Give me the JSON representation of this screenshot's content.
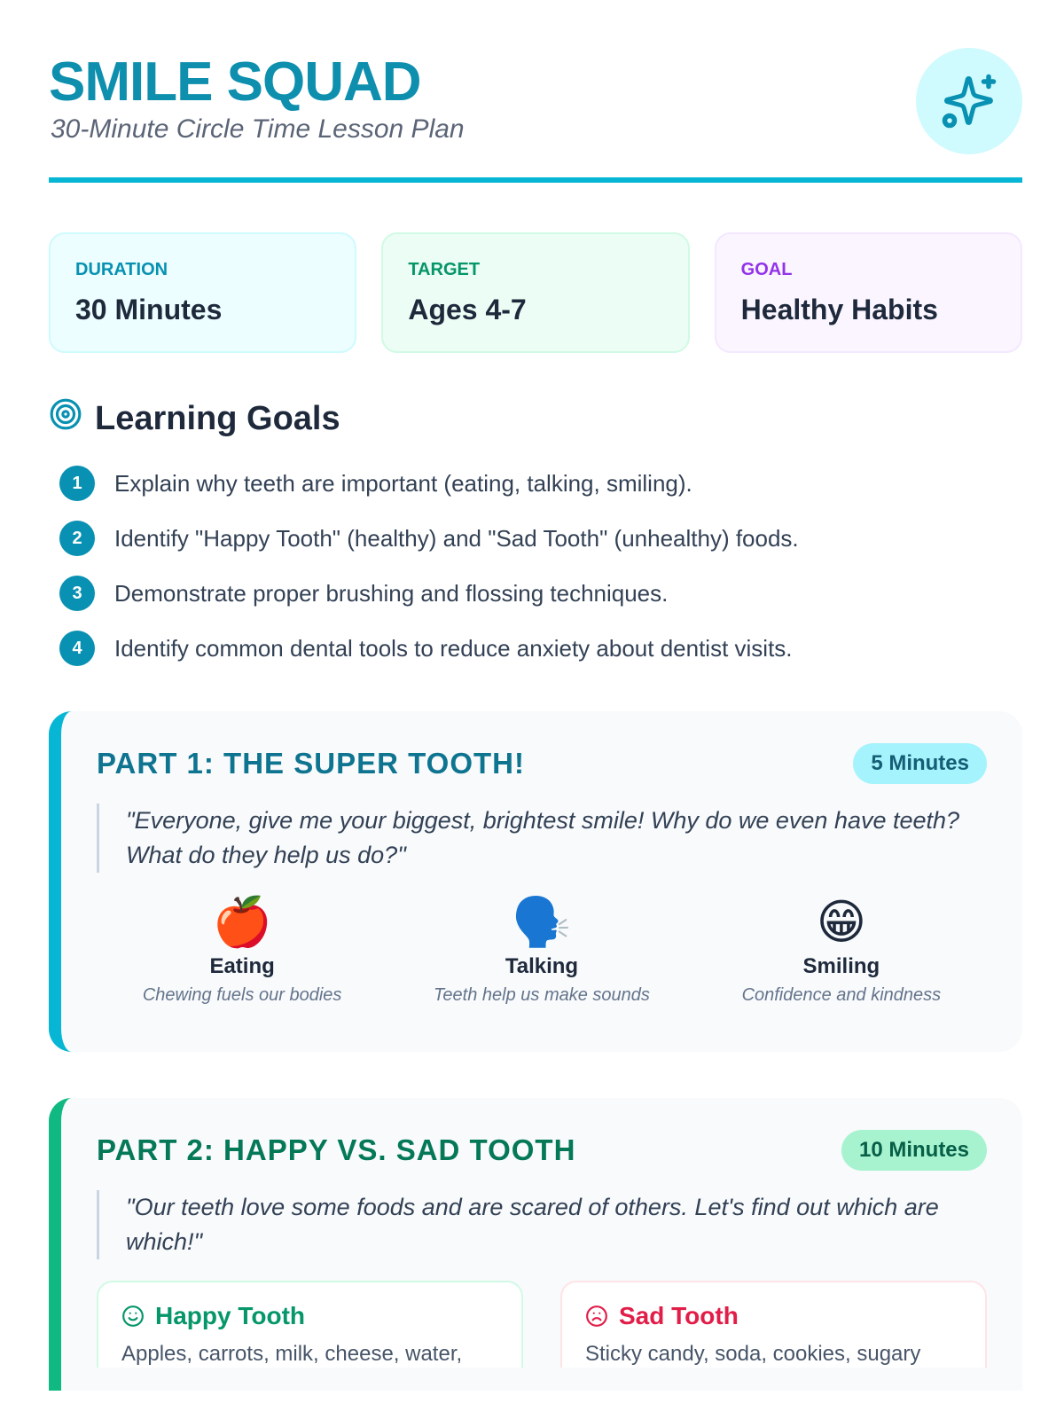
{
  "header": {
    "title": "SMILE SQUAD",
    "subtitle": "30-Minute Circle Time Lesson Plan",
    "icon": "sparkles-icon"
  },
  "info_cards": [
    {
      "label": "DURATION",
      "value": "30 Minutes"
    },
    {
      "label": "TARGET",
      "value": "Ages 4-7"
    },
    {
      "label": "GOAL",
      "value": "Healthy Habits"
    }
  ],
  "learning_goals": {
    "heading": "Learning Goals",
    "icon": "target-icon",
    "items": [
      {
        "num": "1",
        "text": "Explain why teeth are important (eating, talking, smiling)."
      },
      {
        "num": "2",
        "text": "Identify \"Happy Tooth\" (healthy) and \"Sad Tooth\" (unhealthy) foods."
      },
      {
        "num": "3",
        "text": "Demonstrate proper brushing and flossing techniques."
      },
      {
        "num": "4",
        "text": "Identify common dental tools to reduce anxiety about dentist visits."
      }
    ]
  },
  "part1": {
    "title": "PART 1: THE SUPER TOOTH!",
    "duration": "5 Minutes",
    "quote": "\"Everyone, give me your biggest, brightest smile! Why do we even have teeth? What do they help us do?\"",
    "items": [
      {
        "emoji": "🍎",
        "name": "Eating",
        "desc": "Chewing fuels our bodies"
      },
      {
        "emoji": "🗣️",
        "name": "Talking",
        "desc": "Teeth help us make sounds"
      },
      {
        "emoji": "😁",
        "name": "Smiling",
        "desc": "Confidence and kindness"
      }
    ]
  },
  "part2": {
    "title": "PART 2: HAPPY VS. SAD TOOTH",
    "duration": "10 Minutes",
    "quote": "\"Our teeth love some foods and are scared of others. Let's find out which are which!\"",
    "happy": {
      "title": "Happy Tooth",
      "text": "Apples, carrots, milk, cheese, water,"
    },
    "sad": {
      "title": "Sad Tooth",
      "text": "Sticky candy, soda, cookies, sugary"
    }
  },
  "colors": {
    "accent": "#06b6d4",
    "title": "#0e8fae",
    "happy": "#059669",
    "sad": "#e11d48",
    "goal": "#9333ea"
  }
}
